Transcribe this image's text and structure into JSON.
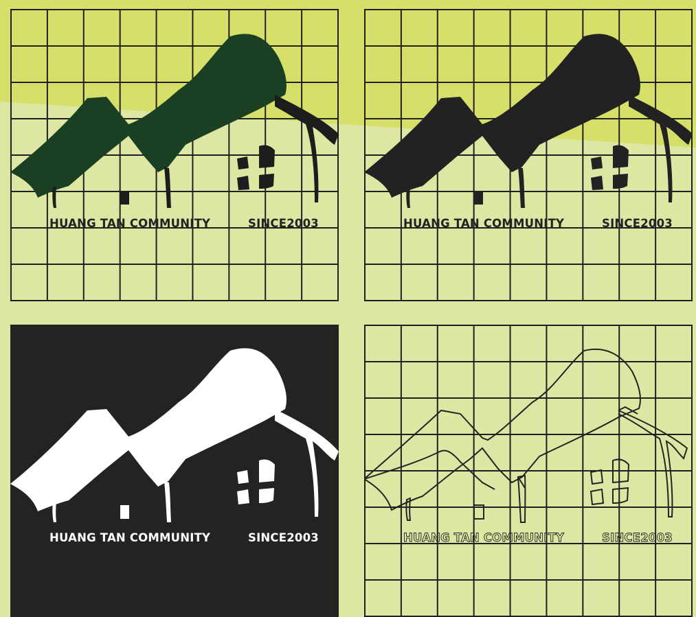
{
  "logo_text": {
    "community": "HUANG TAN COMMUNITY",
    "since": "SINCE2003"
  },
  "variants": [
    {
      "id": "green",
      "roof_color": "#1a3f22",
      "text_color": "#232323",
      "background": "grid"
    },
    {
      "id": "black",
      "roof_color": "#222222",
      "text_color": "#232323",
      "background": "grid"
    },
    {
      "id": "reversed",
      "roof_color": "#ffffff",
      "text_color": "#ffffff",
      "background": "#232323"
    },
    {
      "id": "outline",
      "roof_color": "none",
      "text_color": "#232323",
      "background": "grid"
    }
  ],
  "colors": {
    "page_light": "#dde6a3",
    "page_lime": "#d6e068",
    "grid_line": "#1f1f1f"
  }
}
